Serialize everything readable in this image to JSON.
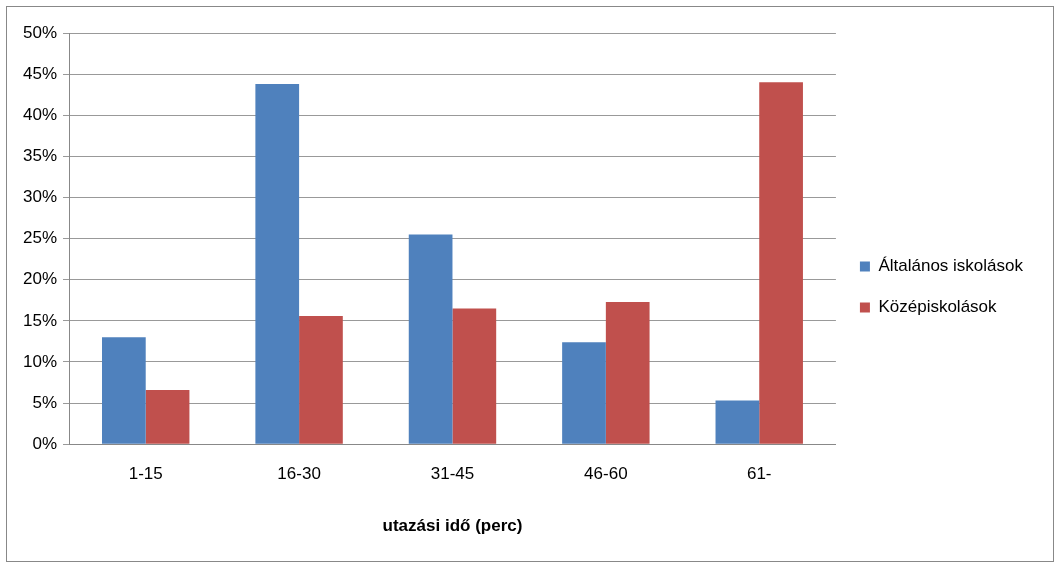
{
  "chart_data": {
    "type": "bar",
    "xlabel": "utazási idő (perc)",
    "categories": [
      "1-15",
      "16-30",
      "31-45",
      "46-60",
      "61-"
    ],
    "series": [
      {
        "name": "Általános iskolások",
        "color": "#4f81bd",
        "values": [
          13.0,
          43.8,
          25.5,
          12.4,
          5.3
        ]
      },
      {
        "name": "Középiskolások",
        "color": "#c0504d",
        "values": [
          6.6,
          15.6,
          16.5,
          17.3,
          44.0
        ]
      }
    ],
    "ylim": [
      0,
      50
    ],
    "yticks": [
      {
        "value": 0,
        "label": "0%"
      },
      {
        "value": 5,
        "label": "5%"
      },
      {
        "value": 10,
        "label": "10%"
      },
      {
        "value": 15,
        "label": "15%"
      },
      {
        "value": 20,
        "label": "20%"
      },
      {
        "value": 25,
        "label": "25%"
      },
      {
        "value": 30,
        "label": "30%"
      },
      {
        "value": 35,
        "label": "35%"
      },
      {
        "value": 40,
        "label": "40%"
      },
      {
        "value": 45,
        "label": "45%"
      },
      {
        "value": 50,
        "label": "50%"
      }
    ],
    "grid": "y",
    "legend": "right"
  }
}
